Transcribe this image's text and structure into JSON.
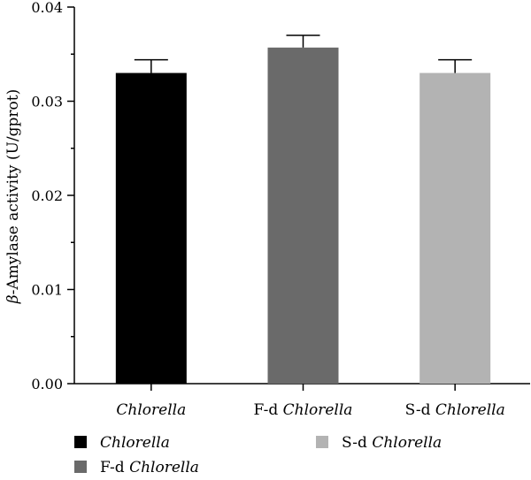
{
  "chart_data": {
    "type": "bar",
    "title": "",
    "xlabel": "",
    "ylabel": "β-Amylase activity (U/gprot)",
    "ylabel_parts": {
      "symbol": "β",
      "rest": "-Amylase activity (U/gprot)"
    },
    "ylim": [
      0,
      0.04
    ],
    "yticks": [
      {
        "value": 0.0,
        "label": "0.00"
      },
      {
        "value": 0.01,
        "label": "0.01"
      },
      {
        "value": 0.02,
        "label": "0.02"
      },
      {
        "value": 0.03,
        "label": "0.03"
      },
      {
        "value": 0.04,
        "label": "0.04"
      }
    ],
    "grid": false,
    "legend_position": "bottom",
    "categories": [
      {
        "prefix": "",
        "name": "Chlorella"
      },
      {
        "prefix": "F-d ",
        "name": "Chlorella"
      },
      {
        "prefix": "S-d ",
        "name": "Chlorella"
      }
    ],
    "values": [
      0.033,
      0.0357,
      0.033
    ],
    "errors": [
      0.0014,
      0.0013,
      0.0014
    ],
    "colors": [
      "#000000",
      "#6a6a6a",
      "#b3b3b3"
    ]
  }
}
